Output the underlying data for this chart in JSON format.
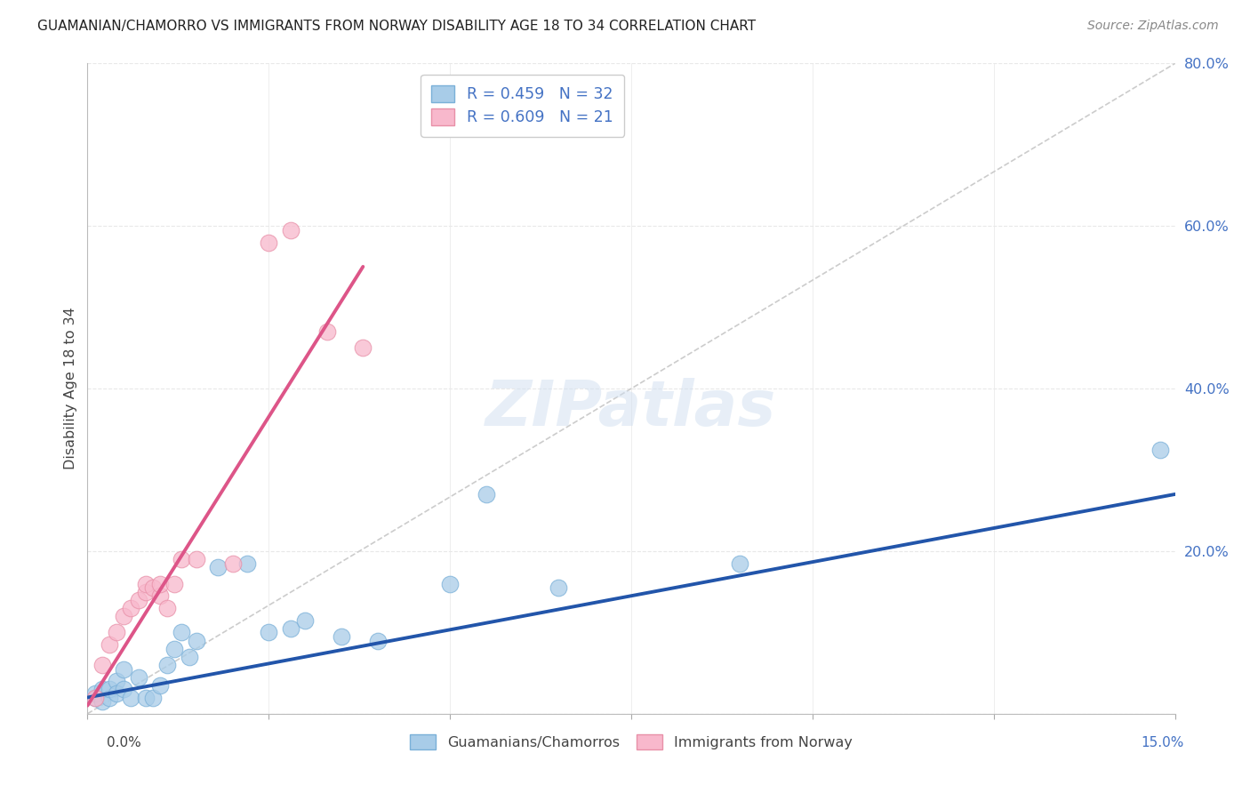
{
  "title": "GUAMANIAN/CHAMORRO VS IMMIGRANTS FROM NORWAY DISABILITY AGE 18 TO 34 CORRELATION CHART",
  "source": "Source: ZipAtlas.com",
  "ylabel": "Disability Age 18 to 34",
  "legend_blue_label": "R = 0.459   N = 32",
  "legend_pink_label": "R = 0.609   N = 21",
  "legend_label1": "Guamanians/Chamorros",
  "legend_label2": "Immigrants from Norway",
  "blue_scatter_x": [
    0.001,
    0.001,
    0.002,
    0.002,
    0.003,
    0.003,
    0.004,
    0.004,
    0.005,
    0.005,
    0.006,
    0.007,
    0.008,
    0.009,
    0.01,
    0.011,
    0.012,
    0.013,
    0.014,
    0.015,
    0.018,
    0.022,
    0.025,
    0.028,
    0.03,
    0.035,
    0.04,
    0.05,
    0.055,
    0.065,
    0.09,
    0.148
  ],
  "blue_scatter_y": [
    0.02,
    0.025,
    0.015,
    0.03,
    0.02,
    0.03,
    0.04,
    0.025,
    0.055,
    0.03,
    0.02,
    0.045,
    0.02,
    0.02,
    0.035,
    0.06,
    0.08,
    0.1,
    0.07,
    0.09,
    0.18,
    0.185,
    0.1,
    0.105,
    0.115,
    0.095,
    0.09,
    0.16,
    0.27,
    0.155,
    0.185,
    0.325
  ],
  "pink_scatter_x": [
    0.001,
    0.002,
    0.003,
    0.004,
    0.005,
    0.006,
    0.007,
    0.008,
    0.008,
    0.009,
    0.01,
    0.01,
    0.011,
    0.012,
    0.013,
    0.015,
    0.02,
    0.025,
    0.028,
    0.033,
    0.038
  ],
  "pink_scatter_y": [
    0.02,
    0.06,
    0.085,
    0.1,
    0.12,
    0.13,
    0.14,
    0.15,
    0.16,
    0.155,
    0.145,
    0.16,
    0.13,
    0.16,
    0.19,
    0.19,
    0.185,
    0.58,
    0.595,
    0.47,
    0.45
  ],
  "xlim": [
    0.0,
    0.15
  ],
  "ylim": [
    0.0,
    0.8
  ],
  "blue_reg": [
    0.0,
    0.15,
    0.02,
    0.27
  ],
  "pink_reg": [
    0.0,
    0.038,
    0.01,
    0.55
  ],
  "ref_line": [
    0.0,
    0.15,
    0.0,
    0.8
  ],
  "ytick_positions": [
    0.0,
    0.2,
    0.4,
    0.6,
    0.8
  ],
  "yticklabels_right": [
    "",
    "20.0%",
    "40.0%",
    "60.0%",
    "80.0%"
  ],
  "xtick_positions": [
    0.0,
    0.025,
    0.05,
    0.075,
    0.1,
    0.125,
    0.15
  ],
  "blue_scatter_color": "#a8cce8",
  "blue_scatter_edge": "#7ab0d8",
  "pink_scatter_color": "#f8b8cc",
  "pink_scatter_edge": "#e890a8",
  "blue_line_color": "#2255aa",
  "pink_line_color": "#dd5588",
  "ref_line_color": "#cccccc",
  "right_tick_color": "#4472c4",
  "title_color": "#222222",
  "source_color": "#888888",
  "ylabel_color": "#444444",
  "grid_color": "#e8e8e8",
  "watermark_color": "#d0dff0",
  "watermark_text": "ZIPatlas"
}
